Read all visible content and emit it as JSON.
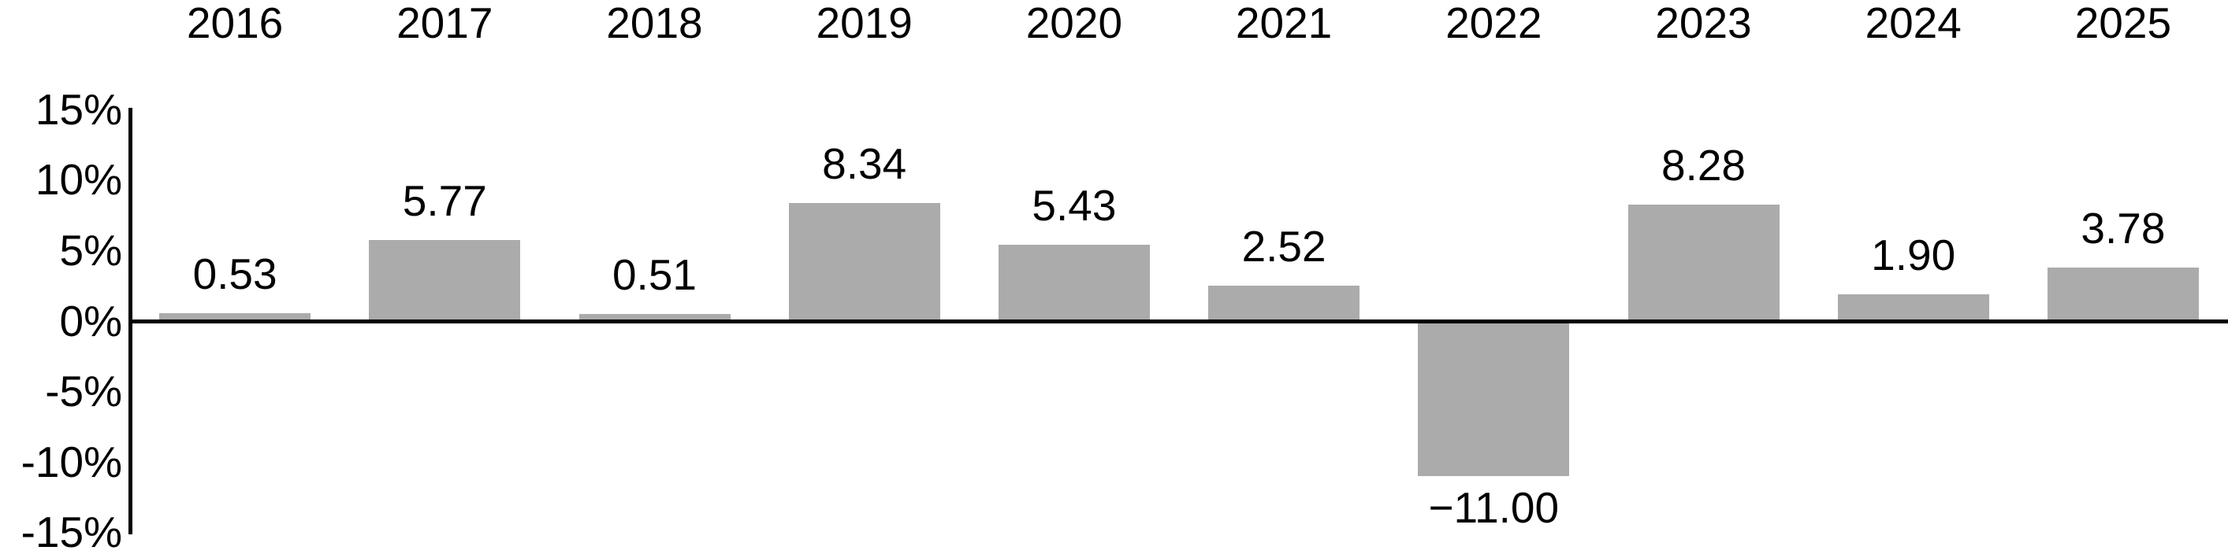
{
  "chart_data": {
    "type": "bar",
    "categories": [
      "2016",
      "2017",
      "2018",
      "2019",
      "2020",
      "2021",
      "2022",
      "2023",
      "2024",
      "2025"
    ],
    "values": [
      0.53,
      5.77,
      0.51,
      8.34,
      5.43,
      2.52,
      -11.0,
      8.28,
      1.9,
      3.78
    ],
    "value_labels": [
      "0.53",
      "5.77",
      "0.51",
      "8.34",
      "5.43",
      "2.52",
      "−11.00",
      "8.28",
      "1.90",
      "3.78"
    ],
    "y_ticks": [
      {
        "value": 15,
        "label": "15%"
      },
      {
        "value": 10,
        "label": "10%"
      },
      {
        "value": 5,
        "label": "5%"
      },
      {
        "value": 0,
        "label": "0%"
      },
      {
        "value": -5,
        "label": "-5%"
      },
      {
        "value": -10,
        "label": "-10%"
      },
      {
        "value": -15,
        "label": "-15%"
      }
    ],
    "ylim": [
      -15,
      15
    ],
    "title": "",
    "xlabel": "",
    "ylabel": "",
    "category_axis_position": "top",
    "value_label_position": "outside-end",
    "grid": false,
    "legend": false,
    "bar_color": "#ABABAB",
    "axis_color": "#000000",
    "text_color": "#000000",
    "background_color": "#FFFFFF"
  }
}
